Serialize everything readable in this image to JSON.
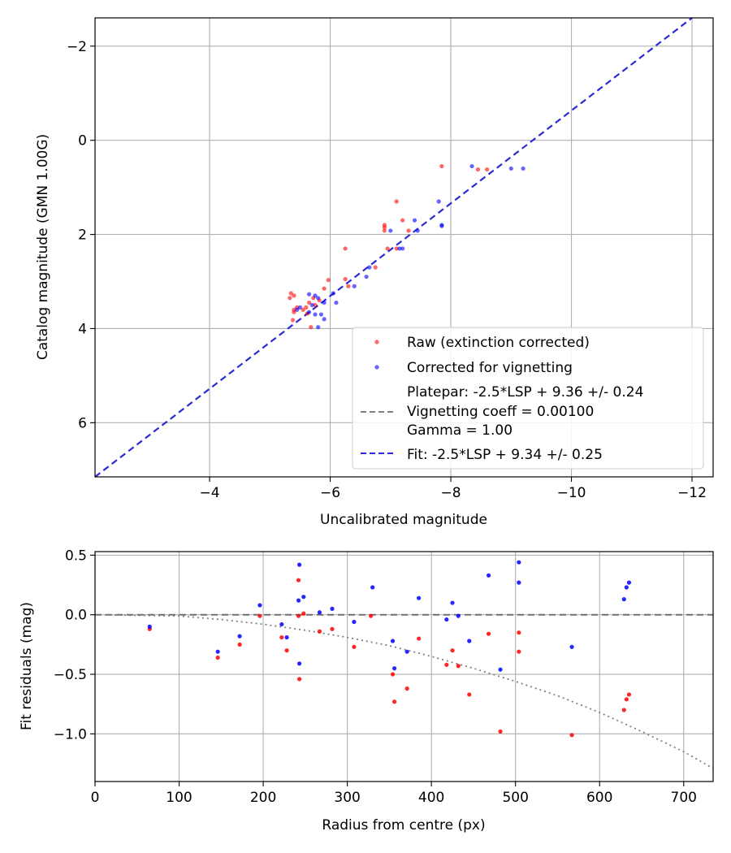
{
  "chart_data": [
    {
      "type": "scatter",
      "xlabel": "Uncalibrated magnitude",
      "ylabel": "Catalog magnitude (GMN 1.00G)",
      "xlim": [
        -2.1,
        -12.35
      ],
      "ylim": [
        7.15,
        -2.6
      ],
      "xticks": [
        -4,
        -6,
        -8,
        -10,
        -12
      ],
      "yticks": [
        -2,
        0,
        2,
        4,
        6
      ],
      "xtick_labels": [
        "−4",
        "−6",
        "−8",
        "−10",
        "−12"
      ],
      "ytick_labels": [
        "−2",
        "0",
        "2",
        "4",
        "6"
      ],
      "grid": true,
      "legend_position": "lower-right",
      "series": [
        {
          "name": "Raw (extinction corrected)",
          "color": "#ff0000",
          "points": [
            [
              -7.85,
              0.55
            ],
            [
              -8.45,
              0.62
            ],
            [
              -8.6,
              0.62
            ],
            [
              -7.1,
              1.3
            ],
            [
              -6.9,
              1.8
            ],
            [
              -6.9,
              1.85
            ],
            [
              -7.2,
              1.7
            ],
            [
              -6.9,
              1.92
            ],
            [
              -7.3,
              1.92
            ],
            [
              -6.95,
              2.3
            ],
            [
              -7.1,
              2.3
            ],
            [
              -6.25,
              2.3
            ],
            [
              -6.75,
              2.7
            ],
            [
              -6.25,
              2.95
            ],
            [
              -5.97,
              2.97
            ],
            [
              -6.3,
              3.1
            ],
            [
              -5.9,
              3.15
            ],
            [
              -5.35,
              3.25
            ],
            [
              -5.4,
              3.3
            ],
            [
              -5.33,
              3.35
            ],
            [
              -5.72,
              3.35
            ],
            [
              -5.82,
              3.4
            ],
            [
              -5.65,
              3.45
            ],
            [
              -5.75,
              3.5
            ],
            [
              -5.6,
              3.55
            ],
            [
              -5.45,
              3.55
            ],
            [
              -5.4,
              3.6
            ],
            [
              -5.55,
              3.6
            ],
            [
              -5.4,
              3.65
            ],
            [
              -5.62,
              3.68
            ],
            [
              -5.38,
              3.82
            ],
            [
              -5.68,
              3.97
            ]
          ]
        },
        {
          "name": "Corrected for vignetting",
          "color": "#0000ff",
          "points": [
            [
              -8.35,
              0.55
            ],
            [
              -9.0,
              0.6
            ],
            [
              -9.2,
              0.6
            ],
            [
              -7.8,
              1.3
            ],
            [
              -7.85,
              1.8
            ],
            [
              -7.85,
              1.82
            ],
            [
              -7.4,
              1.7
            ],
            [
              -7.0,
              1.92
            ],
            [
              -7.45,
              1.92
            ],
            [
              -7.15,
              2.3
            ],
            [
              -7.2,
              2.3
            ],
            [
              -6.65,
              2.7
            ],
            [
              -6.6,
              2.9
            ],
            [
              -6.4,
              3.1
            ],
            [
              -6.05,
              3.25
            ],
            [
              -5.65,
              3.27
            ],
            [
              -5.75,
              3.3
            ],
            [
              -5.8,
              3.35
            ],
            [
              -5.9,
              3.45
            ],
            [
              -6.1,
              3.45
            ],
            [
              -5.7,
              3.5
            ],
            [
              -5.5,
              3.55
            ],
            [
              -5.45,
              3.6
            ],
            [
              -5.65,
              3.65
            ],
            [
              -5.85,
              3.7
            ],
            [
              -5.75,
              3.7
            ],
            [
              -5.9,
              3.8
            ],
            [
              -5.8,
              3.97
            ]
          ]
        }
      ],
      "platepar_line": {
        "label_lines": [
          "Platepar: -2.5*LSP + 9.36 +/- 0.24",
          "Vignetting coeff = 0.00100",
          "Gamma = 1.00"
        ],
        "color": "#808080",
        "x0": 0,
        "y0": 0,
        "x1": 0,
        "y1": 0
      },
      "fit_line": {
        "label": "Fit: -2.5*LSP + 9.34 +/- 0.25",
        "color": "#2a2ad6",
        "x0": -2.1,
        "y0": 7.15,
        "x1": -12.0,
        "y1": -2.6
      }
    },
    {
      "type": "scatter",
      "xlabel": "Radius from centre (px)",
      "ylabel": "Fit residuals (mag)",
      "xlim": [
        0,
        735
      ],
      "ylim": [
        -1.4,
        0.53
      ],
      "xticks": [
        0,
        100,
        200,
        300,
        400,
        500,
        600,
        700
      ],
      "yticks": [
        0.5,
        0.0,
        -0.5,
        -1.0
      ],
      "xtick_labels": [
        "0",
        "100",
        "200",
        "300",
        "400",
        "500",
        "600",
        "700"
      ],
      "ytick_labels": [
        "0.5",
        "0.0",
        "−0.5",
        "−1.0"
      ],
      "grid": true,
      "zero_line_color": "#707070",
      "vignetting_curve_color": "#808080",
      "vignetting_curve": [
        [
          0,
          0.0
        ],
        [
          100,
          -0.01
        ],
        [
          150,
          -0.04
        ],
        [
          200,
          -0.08
        ],
        [
          250,
          -0.13
        ],
        [
          300,
          -0.19
        ],
        [
          350,
          -0.26
        ],
        [
          400,
          -0.35
        ],
        [
          450,
          -0.45
        ],
        [
          500,
          -0.56
        ],
        [
          550,
          -0.68
        ],
        [
          600,
          -0.82
        ],
        [
          650,
          -0.98
        ],
        [
          700,
          -1.15
        ],
        [
          735,
          -1.29
        ]
      ],
      "series": [
        {
          "name": "Raw (extinction corrected)",
          "color": "#ff0000",
          "points": [
            [
              65,
              -0.12
            ],
            [
              146,
              -0.36
            ],
            [
              172,
              -0.25
            ],
            [
              196,
              -0.01
            ],
            [
              222,
              -0.19
            ],
            [
              228,
              -0.3
            ],
            [
              242,
              0.29
            ],
            [
              242,
              -0.01
            ],
            [
              243,
              -0.54
            ],
            [
              248,
              0.01
            ],
            [
              267,
              -0.14
            ],
            [
              282,
              -0.12
            ],
            [
              308,
              -0.27
            ],
            [
              328,
              -0.01
            ],
            [
              354,
              -0.5
            ],
            [
              356,
              -0.73
            ],
            [
              371,
              -0.62
            ],
            [
              385,
              -0.2
            ],
            [
              418,
              -0.42
            ],
            [
              425,
              -0.3
            ],
            [
              432,
              -0.43
            ],
            [
              445,
              -0.67
            ],
            [
              482,
              -0.98
            ],
            [
              468,
              -0.16
            ],
            [
              504,
              -0.15
            ],
            [
              504,
              -0.31
            ],
            [
              567,
              -1.01
            ],
            [
              629,
              -0.8
            ],
            [
              632,
              -0.71
            ],
            [
              635,
              -0.67
            ]
          ]
        },
        {
          "name": "Corrected for vignetting",
          "color": "#0000ff",
          "points": [
            [
              65,
              -0.1
            ],
            [
              146,
              -0.31
            ],
            [
              172,
              -0.18
            ],
            [
              196,
              0.08
            ],
            [
              222,
              -0.08
            ],
            [
              228,
              -0.19
            ],
            [
              242,
              0.12
            ],
            [
              243,
              0.42
            ],
            [
              243,
              -0.41
            ],
            [
              248,
              0.15
            ],
            [
              267,
              0.02
            ],
            [
              282,
              0.05
            ],
            [
              308,
              -0.06
            ],
            [
              330,
              0.23
            ],
            [
              354,
              -0.22
            ],
            [
              356,
              -0.45
            ],
            [
              371,
              -0.31
            ],
            [
              385,
              0.14
            ],
            [
              418,
              -0.04
            ],
            [
              425,
              0.1
            ],
            [
              432,
              -0.01
            ],
            [
              445,
              -0.22
            ],
            [
              468,
              0.33
            ],
            [
              482,
              -0.46
            ],
            [
              504,
              0.27
            ],
            [
              504,
              0.44
            ],
            [
              567,
              -0.27
            ],
            [
              629,
              0.13
            ],
            [
              632,
              0.23
            ],
            [
              635,
              0.27
            ]
          ]
        }
      ]
    }
  ]
}
